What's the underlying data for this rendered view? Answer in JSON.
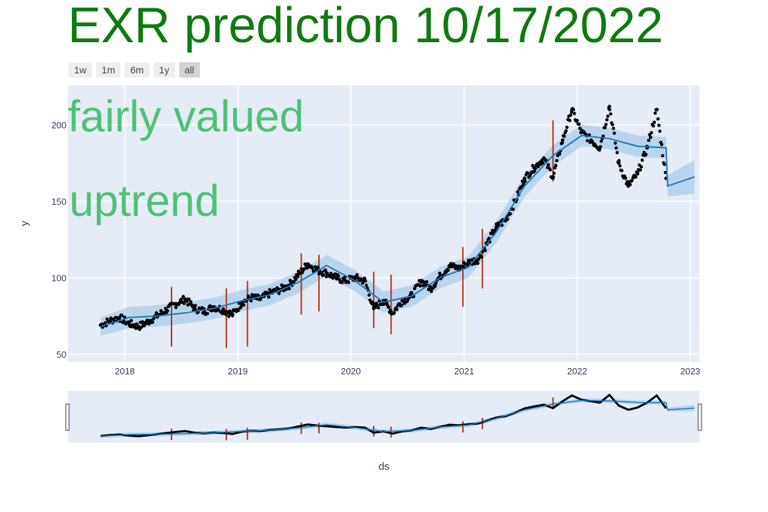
{
  "title": "EXR prediction 10/17/2022",
  "range_selector": [
    {
      "label": "1w",
      "active": false
    },
    {
      "label": "1m",
      "active": false
    },
    {
      "label": "6m",
      "active": false
    },
    {
      "label": "1y",
      "active": false
    },
    {
      "label": "all",
      "active": true
    }
  ],
  "annotations": [
    "fairly valued",
    "uptrend"
  ],
  "colors": {
    "plot_bg": "#e5ecf6",
    "grid": "#ffffff",
    "forecast_line": "#1f77b4",
    "uncertainty_band": "#a8cdea",
    "actual_points": "#000000",
    "changepoints": "#b5300f",
    "title": "#107a10",
    "annotation": "#4fc176"
  },
  "chart_data": {
    "type": "scatter",
    "xlabel": "ds",
    "ylabel": "y",
    "x_ticks": [
      "2018",
      "2019",
      "2020",
      "2021",
      "2022",
      "2023"
    ],
    "y_ticks": [
      50,
      100,
      150,
      200
    ],
    "xlim": [
      "2017-07-01",
      "2023-01-31"
    ],
    "ylim": [
      45,
      226
    ],
    "grid": true,
    "legend": "none",
    "series": [
      {
        "role": "actual",
        "style": "markers",
        "x": [
          "2017-10-15",
          "2017-11-15",
          "2017-12-15",
          "2018-01-15",
          "2018-02-15",
          "2018-03-15",
          "2018-04-15",
          "2018-05-15",
          "2018-06-15",
          "2018-07-15",
          "2018-08-15",
          "2018-09-15",
          "2018-10-15",
          "2018-11-15",
          "2018-12-15",
          "2019-01-15",
          "2019-02-15",
          "2019-03-15",
          "2019-04-15",
          "2019-05-15",
          "2019-06-15",
          "2019-07-15",
          "2019-08-15",
          "2019-09-15",
          "2019-10-15",
          "2019-11-15",
          "2019-12-15",
          "2020-01-15",
          "2020-02-15",
          "2020-03-15",
          "2020-04-15",
          "2020-05-15",
          "2020-06-15",
          "2020-07-15",
          "2020-08-15",
          "2020-09-15",
          "2020-10-15",
          "2020-11-15",
          "2020-12-15",
          "2021-01-15",
          "2021-02-15",
          "2021-03-15",
          "2021-04-15",
          "2021-05-15",
          "2021-06-15",
          "2021-07-15",
          "2021-08-15",
          "2021-09-15",
          "2021-10-15",
          "2021-11-15",
          "2021-12-15",
          "2022-01-15",
          "2022-02-15",
          "2022-03-15",
          "2022-04-15",
          "2022-05-15",
          "2022-06-15",
          "2022-07-15",
          "2022-08-15",
          "2022-09-15",
          "2022-10-15"
        ],
        "y": [
          69,
          72,
          74,
          70,
          68,
          71,
          75,
          79,
          83,
          86,
          80,
          78,
          81,
          79,
          76,
          84,
          87,
          86,
          90,
          92,
          95,
          102,
          109,
          105,
          103,
          100,
          98,
          100,
          98,
          80,
          85,
          77,
          85,
          88,
          98,
          93,
          101,
          108,
          106,
          110,
          112,
          122,
          133,
          138,
          150,
          165,
          172,
          178,
          166,
          190,
          210,
          195,
          190,
          185,
          212,
          175,
          160,
          168,
          185,
          210,
          165
        ]
      },
      {
        "role": "forecast",
        "style": "line",
        "x": [
          "2017-10-15",
          "2018-01-15",
          "2018-04-15",
          "2018-07-15",
          "2018-10-15",
          "2019-01-15",
          "2019-04-15",
          "2019-07-15",
          "2019-10-15",
          "2020-01-15",
          "2020-04-15",
          "2020-07-15",
          "2020-10-15",
          "2021-01-15",
          "2021-04-15",
          "2021-07-15",
          "2021-10-15",
          "2022-01-15",
          "2022-04-15",
          "2022-07-15",
          "2022-10-15",
          "2022-10-20",
          "2023-01-15"
        ],
        "y": [
          68,
          74,
          75,
          77,
          80,
          85,
          89,
          97,
          108,
          98,
          84,
          88,
          100,
          107,
          130,
          160,
          180,
          193,
          191,
          186,
          185,
          160,
          166
        ]
      },
      {
        "role": "uncertainty_upper",
        "style": "band",
        "x": [
          "2017-10-15",
          "2018-01-15",
          "2018-04-15",
          "2018-07-15",
          "2018-10-15",
          "2019-01-15",
          "2019-04-15",
          "2019-07-15",
          "2019-10-15",
          "2020-01-15",
          "2020-04-15",
          "2020-07-15",
          "2020-10-15",
          "2021-01-15",
          "2021-04-15",
          "2021-07-15",
          "2021-10-15",
          "2022-01-15",
          "2022-04-15",
          "2022-07-15",
          "2022-10-15",
          "2022-10-20",
          "2023-01-15"
        ],
        "y": [
          74,
          81,
          82,
          84,
          87,
          92,
          96,
          104,
          115,
          105,
          91,
          95,
          107,
          114,
          137,
          167,
          187,
          200,
          198,
          193,
          192,
          167,
          177
        ]
      },
      {
        "role": "uncertainty_lower",
        "style": "band",
        "x": [
          "2017-10-15",
          "2018-01-15",
          "2018-04-15",
          "2018-07-15",
          "2018-10-15",
          "2019-01-15",
          "2019-04-15",
          "2019-07-15",
          "2019-10-15",
          "2020-01-15",
          "2020-04-15",
          "2020-07-15",
          "2020-10-15",
          "2021-01-15",
          "2021-04-15",
          "2021-07-15",
          "2021-10-15",
          "2022-01-15",
          "2022-04-15",
          "2022-07-15",
          "2022-10-15",
          "2022-10-20",
          "2023-01-15"
        ],
        "y": [
          62,
          67,
          68,
          70,
          73,
          78,
          82,
          90,
          101,
          91,
          77,
          81,
          93,
          100,
          123,
          153,
          173,
          186,
          184,
          179,
          178,
          153,
          155
        ]
      },
      {
        "role": "changepoints",
        "style": "vlines",
        "x": [
          "2018-06-01",
          "2018-11-25",
          "2019-02-01",
          "2019-07-25",
          "2019-09-20",
          "2020-03-15",
          "2020-05-10",
          "2020-12-28",
          "2021-03-01",
          "2021-10-15"
        ],
        "y_low": [
          55,
          54,
          55,
          76,
          78,
          67,
          63,
          81,
          93,
          163
        ],
        "y_high": [
          94,
          93,
          98,
          116,
          115,
          104,
          102,
          120,
          132,
          203
        ]
      }
    ]
  }
}
